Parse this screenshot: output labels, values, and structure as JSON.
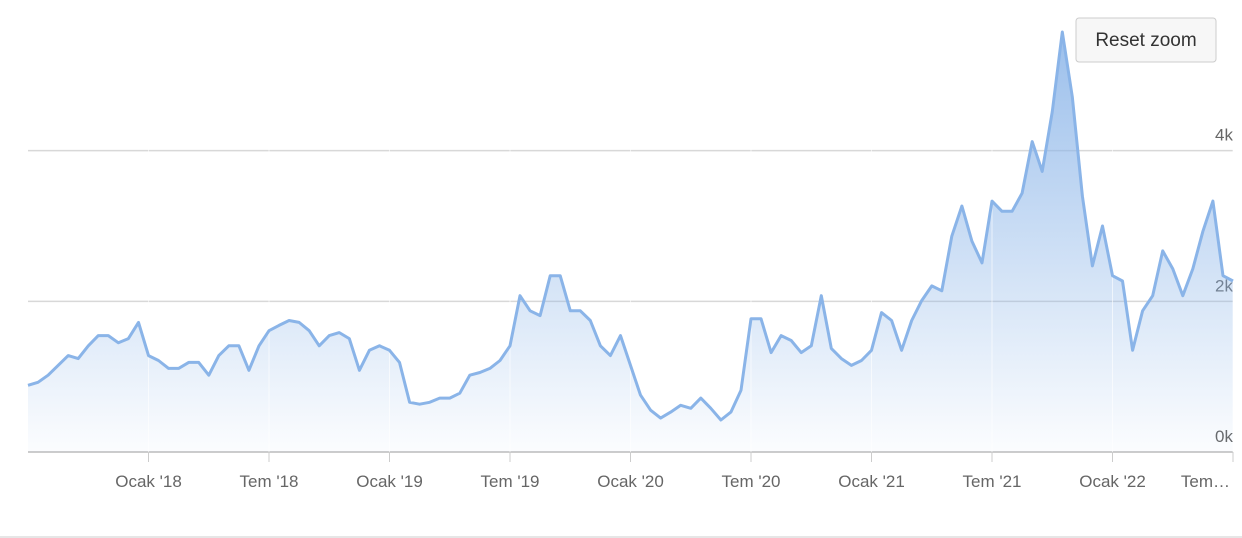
{
  "ui": {
    "reset_zoom": "Reset zoom"
  },
  "chart_data": {
    "type": "area",
    "color": "#8ab4e8",
    "grid": true,
    "values": [
      885,
      925,
      1020,
      1150,
      1280,
      1240,
      1410,
      1545,
      1545,
      1450,
      1505,
      1720,
      1280,
      1215,
      1110,
      1110,
      1190,
      1190,
      1020,
      1280,
      1410,
      1410,
      1085,
      1410,
      1610,
      1680,
      1745,
      1720,
      1610,
      1410,
      1545,
      1585,
      1505,
      1085,
      1350,
      1410,
      1350,
      1190,
      660,
      635,
      660,
      715,
      715,
      780,
      1020,
      1055,
      1110,
      1215,
      1410,
      2075,
      1875,
      1810,
      2340,
      2340,
      1875,
      1875,
      1745,
      1410,
      1280,
      1545,
      1150,
      755,
      555,
      450,
      530,
      620,
      580,
      715,
      580,
      425,
      530,
      820,
      1770,
      1770,
      1320,
      1545,
      1480,
      1320,
      1410,
      2075,
      1375,
      1240,
      1150,
      1215,
      1350,
      1850,
      1745,
      1350,
      1745,
      2010,
      2205,
      2140,
      2865,
      3265,
      2800,
      2510,
      3330,
      3195,
      3195,
      3435,
      4120,
      3725,
      4520,
      5575,
      4715,
      3395,
      2470,
      3000,
      2340,
      2270,
      1350,
      1875,
      2075,
      2670,
      2430,
      2075,
      2430,
      2930,
      3330,
      2340,
      2270
    ],
    "xlim": [
      0,
      120
    ],
    "xticks": [
      {
        "value": 12,
        "label": "Ocak '18"
      },
      {
        "value": 24,
        "label": "Tem '18"
      },
      {
        "value": 36,
        "label": "Ocak '19"
      },
      {
        "value": 48,
        "label": "Tem '19"
      },
      {
        "value": 60,
        "label": "Ocak '20"
      },
      {
        "value": 72,
        "label": "Tem '20"
      },
      {
        "value": 84,
        "label": "Ocak '21"
      },
      {
        "value": 96,
        "label": "Tem '21"
      },
      {
        "value": 108,
        "label": "Ocak '22"
      },
      {
        "value": 120,
        "label": "Tem…"
      }
    ],
    "ylim": [
      0,
      6000
    ],
    "yticks": [
      {
        "value": 0,
        "label": "0k"
      },
      {
        "value": 2000,
        "label": "2k"
      },
      {
        "value": 4000,
        "label": "4k"
      }
    ]
  }
}
